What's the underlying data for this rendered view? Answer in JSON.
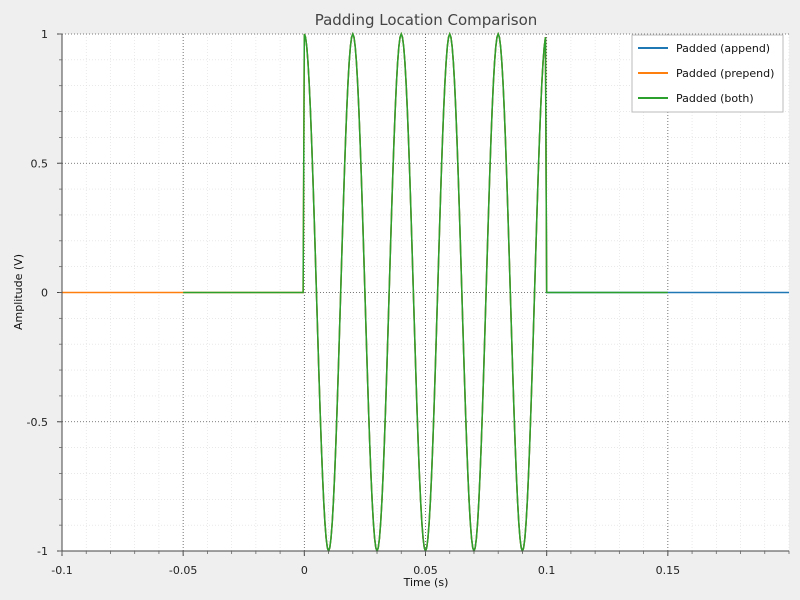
{
  "chart_data": {
    "type": "line",
    "title": "Padding Location Comparison",
    "xlabel": "Time (s)",
    "ylabel": "Amplitude (V)",
    "xlim": [
      -0.1,
      0.2
    ],
    "ylim": [
      -1,
      1
    ],
    "xticks": [
      -0.1,
      -0.05,
      0,
      0.05,
      0.1,
      0.15
    ],
    "xtick_labels": [
      "-0.1",
      "-0.05",
      "0",
      "0.05",
      "0.1",
      "0.15"
    ],
    "yticks": [
      1,
      0.5,
      0,
      -0.5,
      -1
    ],
    "ytick_labels": [
      "1",
      "0.5",
      "0",
      "-0.5",
      "-1"
    ],
    "grid": true,
    "legend_position": "top-right",
    "signal": {
      "frequency_hz": 50,
      "duration_s": 0.1,
      "sample_rate_hz": 2000
    },
    "series": [
      {
        "name": "Padded (append)",
        "color": "#1f77b4",
        "t_start": 0.0,
        "t_end": 0.2,
        "pulse_start": 0.0
      },
      {
        "name": "Padded (prepend)",
        "color": "#ff7f0e",
        "t_start": -0.1,
        "t_end": 0.1,
        "pulse_start": 0.0
      },
      {
        "name": "Padded (both)",
        "color": "#2ca02c",
        "t_start": -0.05,
        "t_end": 0.15,
        "pulse_start": 0.0
      }
    ]
  }
}
